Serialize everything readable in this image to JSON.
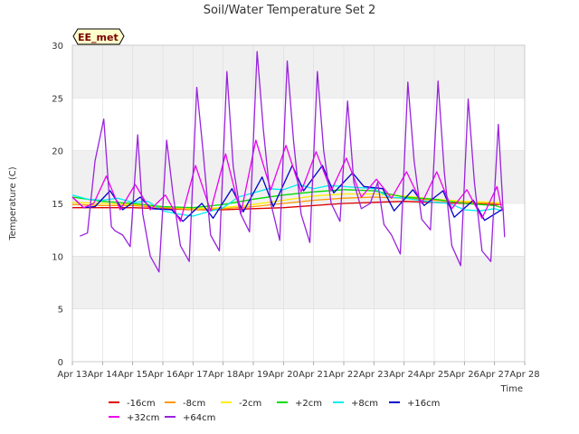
{
  "colors": {
    "background": "#ffffff",
    "band": "#f0f0f0",
    "grid": "#dddddd",
    "axis": "#cccccc",
    "badge_bg": "#ffffcc",
    "badge_text": "#7a0000"
  },
  "chart_data": {
    "type": "line",
    "title": "Soil/Water Temperature Set 2",
    "xlabel": "Time",
    "ylabel": "Temperature (C)",
    "badge": "EE_met",
    "ylim": [
      0,
      30
    ],
    "yticks": [
      0,
      5,
      10,
      15,
      20,
      25,
      30
    ],
    "xlim": [
      "2024-04-13",
      "2024-04-28"
    ],
    "xticks": [
      "Apr 13",
      "Apr 14",
      "Apr 15",
      "Apr 16",
      "Apr 17",
      "Apr 18",
      "Apr 19",
      "Apr 20",
      "Apr 21",
      "Apr 22",
      "Apr 23",
      "Apr 24",
      "Apr 25",
      "Apr 26",
      "Apr 27",
      "Apr 28"
    ],
    "grid": true,
    "legend": "bottom",
    "series": [
      {
        "name": "-16cm",
        "color": "#dd0000",
        "x": [
          "Apr 13 00:00",
          "Apr 14 00:00",
          "Apr 15 00:00",
          "Apr 16 00:00",
          "Apr 17 00:00",
          "Apr 18 00:00",
          "Apr 19 00:00",
          "Apr 20 00:00",
          "Apr 21 00:00",
          "Apr 22 00:00",
          "Apr 23 00:00",
          "Apr 24 00:00",
          "Apr 25 00:00",
          "Apr 26 00:00",
          "Apr 27 00:00",
          "Apr 27 06:00"
        ],
        "y": [
          14.6,
          14.6,
          14.6,
          14.5,
          14.4,
          14.4,
          14.5,
          14.6,
          14.8,
          15.0,
          15.1,
          15.2,
          15.1,
          15.0,
          14.9,
          14.9
        ]
      },
      {
        "name": "-8cm",
        "color": "#ff9900",
        "x": [
          "Apr 13 00:00",
          "Apr 14 00:00",
          "Apr 15 00:00",
          "Apr 16 00:00",
          "Apr 17 00:00",
          "Apr 18 00:00",
          "Apr 19 00:00",
          "Apr 20 00:00",
          "Apr 21 00:00",
          "Apr 22 00:00",
          "Apr 23 00:00",
          "Apr 24 00:00",
          "Apr 25 00:00",
          "Apr 26 00:00",
          "Apr 27 00:00",
          "Apr 27 06:00"
        ],
        "y": [
          14.9,
          14.8,
          14.8,
          14.6,
          14.4,
          14.5,
          14.7,
          15.0,
          15.3,
          15.5,
          15.6,
          15.5,
          15.3,
          15.1,
          15.0,
          14.9
        ]
      },
      {
        "name": "-2cm",
        "color": "#ffee00",
        "x": [
          "Apr 13 00:00",
          "Apr 14 00:00",
          "Apr 15 00:00",
          "Apr 16 00:00",
          "Apr 17 00:00",
          "Apr 18 00:00",
          "Apr 19 00:00",
          "Apr 20 00:00",
          "Apr 21 00:00",
          "Apr 22 00:00",
          "Apr 23 00:00",
          "Apr 24 00:00",
          "Apr 25 00:00",
          "Apr 26 00:00",
          "Apr 27 00:00",
          "Apr 27 06:00"
        ],
        "y": [
          15.1,
          15.0,
          14.9,
          14.7,
          14.5,
          14.6,
          14.9,
          15.3,
          15.7,
          15.9,
          15.9,
          15.7,
          15.4,
          15.2,
          15.1,
          15.0
        ]
      },
      {
        "name": "+2cm",
        "color": "#00dd00",
        "x": [
          "Apr 13 00:00",
          "Apr 14 00:00",
          "Apr 15 00:00",
          "Apr 16 00:00",
          "Apr 17 00:00",
          "Apr 18 00:00",
          "Apr 19 00:00",
          "Apr 20 00:00",
          "Apr 21 00:00",
          "Apr 22 00:00",
          "Apr 23 00:00",
          "Apr 24 00:00",
          "Apr 25 00:00",
          "Apr 26 00:00",
          "Apr 27 00:00",
          "Apr 27 06:00"
        ],
        "y": [
          15.6,
          15.2,
          15.0,
          14.7,
          14.6,
          14.9,
          15.4,
          15.8,
          16.1,
          16.3,
          16.2,
          15.6,
          15.4,
          15.0,
          14.8,
          14.6
        ]
      },
      {
        "name": "+8cm",
        "color": "#00eeee",
        "x": [
          "Apr 13 00:00",
          "Apr 13 12:00",
          "Apr 14 00:00",
          "Apr 14 12:00",
          "Apr 15 00:00",
          "Apr 15 12:00",
          "Apr 16 00:00",
          "Apr 16 12:00",
          "Apr 17 00:00",
          "Apr 17 12:00",
          "Apr 18 00:00",
          "Apr 18 12:00",
          "Apr 19 00:00",
          "Apr 19 12:00",
          "Apr 20 00:00",
          "Apr 20 12:00",
          "Apr 21 00:00",
          "Apr 21 12:00",
          "Apr 22 00:00",
          "Apr 22 12:00",
          "Apr 23 00:00",
          "Apr 23 12:00",
          "Apr 24 00:00",
          "Apr 24 12:00",
          "Apr 25 00:00",
          "Apr 25 12:00",
          "Apr 26 00:00",
          "Apr 26 12:00",
          "Apr 27 00:00",
          "Apr 27 06:00"
        ],
        "y": [
          15.8,
          15.4,
          15.3,
          15.5,
          15.1,
          15.2,
          14.3,
          14.0,
          13.8,
          14.2,
          14.6,
          15.6,
          16.0,
          16.4,
          16.3,
          16.8,
          16.4,
          16.7,
          16.6,
          16.5,
          16.4,
          15.6,
          15.5,
          15.3,
          15.1,
          15.0,
          14.4,
          14.3,
          14.5,
          14.3
        ]
      },
      {
        "name": "+16cm",
        "color": "#0000cc",
        "x": [
          "Apr 13 00:00",
          "Apr 13 09:00",
          "Apr 13 18:00",
          "Apr 14 06:00",
          "Apr 14 16:00",
          "Apr 15 06:00",
          "Apr 15 15:00",
          "Apr 16 07:00",
          "Apr 16 16:00",
          "Apr 17 07:00",
          "Apr 17 16:00",
          "Apr 18 07:00",
          "Apr 18 16:00",
          "Apr 19 07:00",
          "Apr 19 16:00",
          "Apr 20 07:00",
          "Apr 20 16:00",
          "Apr 21 07:00",
          "Apr 21 16:00",
          "Apr 22 07:00",
          "Apr 22 16:00",
          "Apr 23 07:00",
          "Apr 23 16:00",
          "Apr 24 07:00",
          "Apr 24 16:00",
          "Apr 25 07:00",
          "Apr 25 16:00",
          "Apr 26 07:00",
          "Apr 26 16:00",
          "Apr 27 07:00"
        ],
        "y": [
          15.6,
          14.6,
          14.7,
          16.2,
          14.4,
          15.6,
          14.5,
          14.4,
          13.3,
          15.0,
          13.6,
          16.4,
          14.2,
          17.5,
          14.7,
          18.6,
          16.2,
          18.6,
          16.0,
          17.9,
          16.6,
          16.4,
          14.3,
          16.3,
          14.8,
          16.2,
          13.7,
          15.3,
          13.4,
          14.5
        ]
      },
      {
        "name": "+32cm",
        "color": "#ee00ee",
        "x": [
          "Apr 13 00:00",
          "Apr 13 09:00",
          "Apr 13 17:00",
          "Apr 14 03:00",
          "Apr 14 14:00",
          "Apr 15 02:00",
          "Apr 15 14:00",
          "Apr 16 02:00",
          "Apr 16 14:00",
          "Apr 17 02:00",
          "Apr 17 14:00",
          "Apr 18 02:00",
          "Apr 18 14:00",
          "Apr 19 02:00",
          "Apr 19 14:00",
          "Apr 20 02:00",
          "Apr 20 14:00",
          "Apr 21 02:00",
          "Apr 21 14:00",
          "Apr 22 02:00",
          "Apr 22 14:00",
          "Apr 23 02:00",
          "Apr 23 14:00",
          "Apr 24 02:00",
          "Apr 24 14:00",
          "Apr 25 02:00",
          "Apr 25 14:00",
          "Apr 26 02:00",
          "Apr 26 14:00",
          "Apr 27 02:00",
          "Apr 27 06:00"
        ],
        "y": [
          15.6,
          14.6,
          15.0,
          17.6,
          14.4,
          16.8,
          14.4,
          15.8,
          13.3,
          18.6,
          14.3,
          19.7,
          14.0,
          21.0,
          16.3,
          20.5,
          16.1,
          19.9,
          16.2,
          19.3,
          15.6,
          17.3,
          15.5,
          18.0,
          15.0,
          18.0,
          14.5,
          16.3,
          13.6,
          16.6,
          14.3
        ]
      },
      {
        "name": "+64cm",
        "color": "#9922dd",
        "x": [
          "Apr 13 06:00",
          "Apr 13 12:00",
          "Apr 13 18:00",
          "Apr 14 01:00",
          "Apr 14 07:00",
          "Apr 14 10:00",
          "Apr 14 16:00",
          "Apr 14 22:00",
          "Apr 15 04:00",
          "Apr 15 08:00",
          "Apr 15 14:00",
          "Apr 15 21:00",
          "Apr 16 03:00",
          "Apr 16 08:00",
          "Apr 16 14:00",
          "Apr 16 21:00",
          "Apr 17 03:00",
          "Apr 17 08:00",
          "Apr 17 14:00",
          "Apr 17 21:00",
          "Apr 18 03:00",
          "Apr 18 08:00",
          "Apr 18 14:00",
          "Apr 18 21:00",
          "Apr 19 03:00",
          "Apr 19 08:00",
          "Apr 19 14:00",
          "Apr 19 21:00",
          "Apr 20 03:00",
          "Apr 20 08:00",
          "Apr 20 14:00",
          "Apr 20 21:00",
          "Apr 21 03:00",
          "Apr 21 08:00",
          "Apr 21 14:00",
          "Apr 21 21:00",
          "Apr 22 03:00",
          "Apr 22 08:00",
          "Apr 22 14:00",
          "Apr 22 21:00",
          "Apr 23 03:00",
          "Apr 23 08:00",
          "Apr 23 14:00",
          "Apr 23 21:00",
          "Apr 24 03:00",
          "Apr 24 08:00",
          "Apr 24 14:00",
          "Apr 24 21:00",
          "Apr 25 03:00",
          "Apr 25 08:00",
          "Apr 25 14:00",
          "Apr 25 21:00",
          "Apr 26 03:00",
          "Apr 26 08:00",
          "Apr 26 14:00",
          "Apr 26 21:00",
          "Apr 27 03:00",
          "Apr 27 08:00"
        ],
        "y": [
          11.9,
          12.2,
          19.0,
          23.0,
          12.8,
          12.4,
          12.0,
          10.9,
          21.5,
          14.0,
          10.0,
          8.5,
          21.0,
          16.0,
          11.0,
          9.5,
          26.0,
          20.0,
          12.0,
          10.5,
          27.5,
          18.5,
          14.0,
          12.3,
          29.4,
          22.0,
          15.0,
          11.5,
          28.5,
          21.0,
          14.0,
          11.3,
          27.5,
          20.0,
          15.0,
          13.3,
          24.7,
          17.0,
          14.5,
          15.0,
          17.0,
          13.0,
          12.0,
          10.2,
          26.5,
          19.0,
          13.5,
          12.5,
          26.6,
          18.0,
          11.0,
          9.1,
          24.9,
          17.0,
          10.5,
          9.5,
          22.5,
          11.8
        ]
      }
    ]
  }
}
